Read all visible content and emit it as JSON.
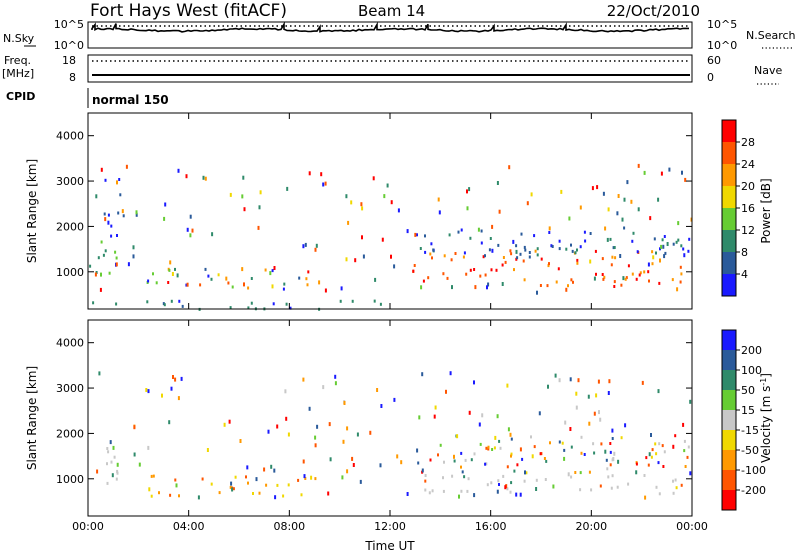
{
  "header": {
    "station": "Fort Hays West (fitACF)",
    "beam": "Beam 14",
    "date": "22/Oct/2010"
  },
  "noise_panel": {
    "left_label": "N.Sky",
    "left_ticks": [
      "10^5",
      "10^0"
    ],
    "right_label": "N.Search",
    "right_ticks": [
      "10^5",
      "10^0"
    ]
  },
  "freq_panel": {
    "left_label_line1": "Freq.",
    "left_label_line2": "[MHz]",
    "left_ticks": [
      "18",
      "8"
    ],
    "right_label": "Nave",
    "right_ticks": [
      "60",
      "0"
    ]
  },
  "cpid": {
    "label": "CPID",
    "value": "normal 150"
  },
  "power_colorbar": {
    "label": "Power [dB]",
    "ticks": [
      "4",
      "8",
      "12",
      "16",
      "20",
      "24",
      "28"
    ],
    "colors": [
      "#1a1aff",
      "#2a5a9a",
      "#2f8a6a",
      "#66cc33",
      "#f0d800",
      "#ff9900",
      "#ff5500",
      "#ff0000"
    ]
  },
  "velocity_colorbar": {
    "label": "Velocity [m s^-1]",
    "ticks": [
      "200",
      "100",
      "50",
      "15",
      "-15",
      "-50",
      "-100",
      "-200"
    ],
    "colors": [
      "#1a1aff",
      "#2a5a9a",
      "#2f8a6a",
      "#66cc33",
      "#c8c8c8",
      "#f0d800",
      "#ff9900",
      "#ff5500",
      "#ff0000"
    ]
  },
  "chart_data": [
    {
      "type": "heatmap",
      "name": "power",
      "ylabel": "Slant Range [km]",
      "xlabel": "",
      "x_ticks": [
        "00:00",
        "04:00",
        "08:00",
        "12:00",
        "16:00",
        "20:00",
        "00:00"
      ],
      "y_ticks": [
        1000,
        2000,
        3000,
        4000
      ],
      "xlim_hours": [
        0,
        24
      ],
      "ylim_km": [
        180,
        4500
      ],
      "echo_regions": [
        {
          "t0": 0.0,
          "t1": 1.2,
          "r0": 800,
          "r1": 1700,
          "power": "12-16"
        },
        {
          "t0": 0.6,
          "t1": 1.4,
          "r0": 1700,
          "r1": 3300,
          "power": "4-8"
        },
        {
          "t0": 2.0,
          "t1": 9.0,
          "r0": 650,
          "r1": 1100,
          "power": "4-20"
        },
        {
          "t0": 0.0,
          "t1": 12.5,
          "r0": 180,
          "r1": 400,
          "power": "4-12"
        },
        {
          "t0": 12.8,
          "t1": 24.0,
          "r0": 700,
          "r1": 1500,
          "power": "20-28"
        },
        {
          "t0": 13.0,
          "t1": 24.0,
          "r0": 1300,
          "r1": 2000,
          "power": "4-12"
        }
      ]
    },
    {
      "type": "heatmap",
      "name": "velocity",
      "ylabel": "Slant Range [km]",
      "xlabel": "Time UT",
      "x_ticks": [
        "00:00",
        "04:00",
        "08:00",
        "12:00",
        "16:00",
        "20:00",
        "00:00"
      ],
      "y_ticks": [
        1000,
        2000,
        3000,
        4000
      ],
      "xlim_hours": [
        0,
        24
      ],
      "ylim_km": [
        180,
        4500
      ],
      "echo_regions": [
        {
          "t0": 0.0,
          "t1": 1.2,
          "r0": 800,
          "r1": 1700,
          "velocity": "-15-15"
        },
        {
          "t0": 2.0,
          "t1": 9.0,
          "r0": 650,
          "r1": 1100,
          "velocity": "-100-50"
        },
        {
          "t0": 12.8,
          "t1": 24.0,
          "r0": 700,
          "r1": 1100,
          "velocity": "-15-15"
        },
        {
          "t0": 13.0,
          "t1": 24.0,
          "r0": 1100,
          "r1": 2000,
          "velocity": "mixed"
        }
      ]
    }
  ]
}
